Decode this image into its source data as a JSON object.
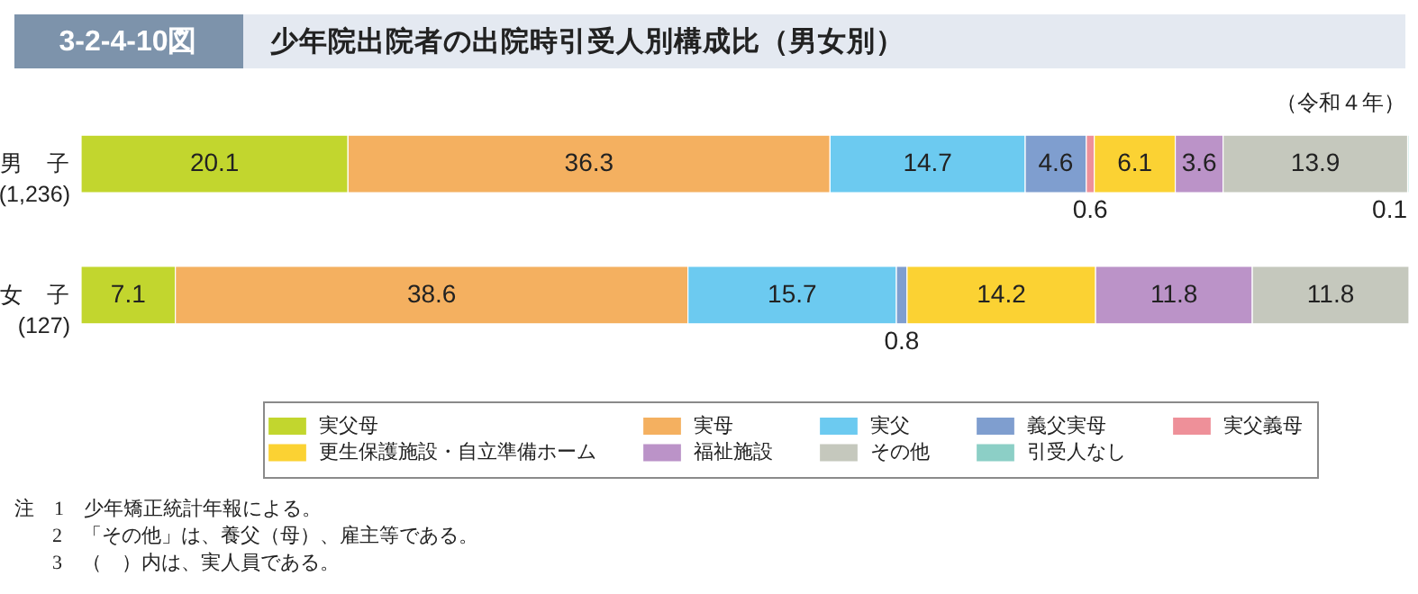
{
  "chart_data": {
    "type": "bar",
    "orientation": "horizontal",
    "stacked": true,
    "title": "少年院出院者の出院時引受人別構成比（男女別）",
    "subtitle": "（令和４年）",
    "annotations": [
      "3-2-4-10図",
      "注　1　少年矯正統計年報による。",
      "2　「その他」は、養父（母）、雇主等である。",
      "3　（　）内は、実人員である。"
    ],
    "categories": [
      "男　子\n(1,236)",
      "女　子\n(127)"
    ],
    "series": [
      {
        "name": "実父母",
        "color": "#c2d62e",
        "values": [
          20.1,
          7.1
        ]
      },
      {
        "name": "実母",
        "color": "#f4b060",
        "values": [
          36.3,
          38.6
        ]
      },
      {
        "name": "実父",
        "color": "#6ccaf0",
        "values": [
          14.7,
          15.7
        ]
      },
      {
        "name": "義父実母",
        "color": "#7f9ecf",
        "values": [
          4.6,
          0.8
        ]
      },
      {
        "name": "実父義母",
        "color": "#ee9099",
        "values": [
          0.6,
          null
        ]
      },
      {
        "name": "更生保護施設・自立準備ホーム",
        "color": "#fbd233",
        "values": [
          6.1,
          14.2
        ]
      },
      {
        "name": "福祉施設",
        "color": "#bb93c8",
        "values": [
          3.6,
          11.8
        ]
      },
      {
        "name": "その他",
        "color": "#c5c8bd",
        "values": [
          13.9,
          11.8
        ]
      },
      {
        "name": "引受人なし",
        "color": "#8ccfc6",
        "values": [
          0.1,
          null
        ]
      }
    ],
    "xlim": [
      0,
      100
    ],
    "tick_labels": "y",
    "legend": "bottom",
    "data_labels": true
  }
}
